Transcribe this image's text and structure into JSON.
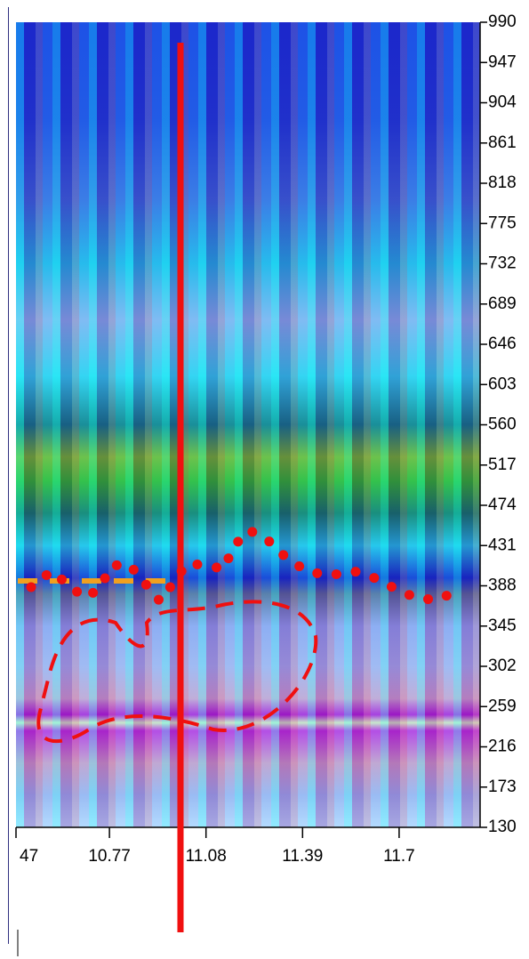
{
  "chart_data": {
    "type": "contour",
    "ylim": [
      130,
      990
    ],
    "yticks": [
      990,
      947,
      904,
      861,
      818,
      775,
      732,
      689,
      646,
      603,
      560,
      517,
      474,
      431,
      388,
      345,
      302,
      259,
      216,
      173,
      130
    ],
    "xlim": [
      10.47,
      11.96
    ],
    "xticks": [
      {
        "value": 10.47,
        "label": "47"
      },
      10.77,
      11.08,
      11.39,
      11.7
    ]
  }
}
